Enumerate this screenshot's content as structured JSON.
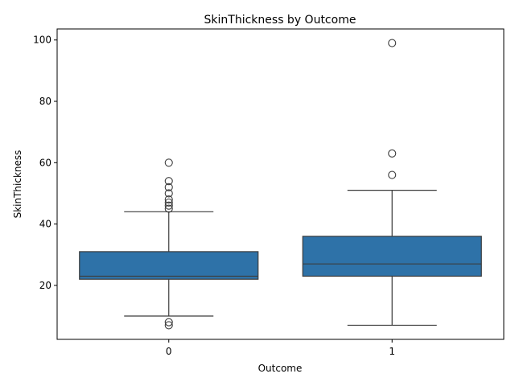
{
  "chart_data": {
    "type": "box",
    "title": "SkinThickness by Outcome",
    "xlabel": "Outcome",
    "ylabel": "SkinThickness",
    "categories": [
      "0",
      "1"
    ],
    "ylim": [
      2.4,
      103.6
    ],
    "yticks": [
      20,
      40,
      60,
      80,
      100
    ],
    "grid": false,
    "box_color": "#2e72a8",
    "line_color": "#3c3c3c",
    "boxes": [
      {
        "category": "0",
        "whisker_low": 10,
        "q1": 22,
        "median": 23,
        "q3": 31,
        "whisker_high": 44,
        "outliers": [
          7,
          8,
          45,
          46,
          47,
          48,
          50,
          52,
          54,
          60
        ]
      },
      {
        "category": "1",
        "whisker_low": 7,
        "q1": 23,
        "median": 27,
        "q3": 36,
        "whisker_high": 51,
        "outliers": [
          56,
          63,
          99
        ]
      }
    ]
  }
}
